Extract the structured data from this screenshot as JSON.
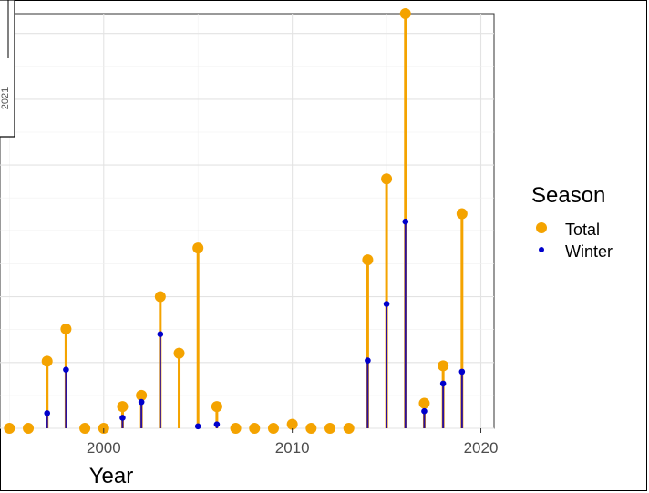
{
  "chart_data": {
    "type": "lollipop",
    "xlabel": "Year",
    "ylabel": "",
    "xlim": [
      1994.5,
      2020.7
    ],
    "ylim": [
      0,
      63
    ],
    "x_ticks": [
      2000,
      2010,
      2020
    ],
    "grid": true,
    "legend": {
      "title": "Season",
      "placement": "right",
      "entries": [
        "Total",
        "Winter"
      ]
    },
    "inset_label": "2021",
    "colors": {
      "Total": "#f4a300",
      "Winter": "#0000cc",
      "winter_stem": "#2a0f9e"
    },
    "x": [
      1995,
      1996,
      1997,
      1998,
      1999,
      2000,
      2001,
      2002,
      2003,
      2004,
      2005,
      2006,
      2007,
      2008,
      2009,
      2010,
      2011,
      2012,
      2013,
      2014,
      2015,
      2016,
      2017,
      2018,
      2019
    ],
    "series": [
      {
        "name": "Total",
        "values": [
          0,
          0,
          10.2,
          15.1,
          0,
          0,
          3.3,
          5,
          20,
          11.4,
          27.4,
          3.3,
          0,
          0,
          0,
          0.6,
          0,
          0,
          0,
          25.6,
          37.9,
          63,
          3.8,
          9.5,
          32.6
        ]
      },
      {
        "name": "Winter",
        "values": [
          0,
          0,
          2.3,
          8.9,
          0,
          0,
          1.6,
          4,
          14.3,
          0,
          0.3,
          0.6,
          0,
          0,
          0,
          0,
          0,
          0,
          0,
          10.3,
          18.9,
          31.4,
          2.6,
          6.8,
          8.6
        ]
      }
    ]
  }
}
